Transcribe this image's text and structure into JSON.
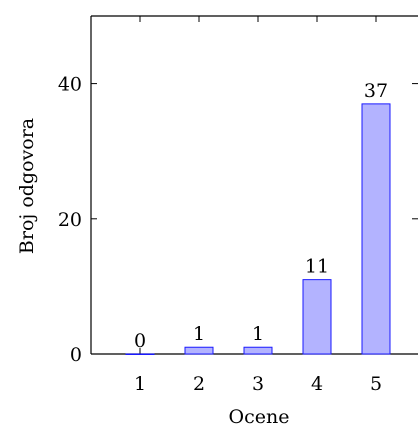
{
  "chart_data": {
    "type": "bar",
    "title": "",
    "xlabel": "Ocene",
    "ylabel": "Broj odgovora",
    "categories": [
      "1",
      "2",
      "3",
      "4",
      "5"
    ],
    "values": [
      0,
      1,
      1,
      11,
      37
    ],
    "data_labels": [
      "0",
      "1",
      "1",
      "11",
      "37"
    ],
    "ylim": [
      0,
      50
    ],
    "yticks": [
      0,
      20,
      40
    ],
    "ytick_labels": [
      "0",
      "20",
      "40"
    ],
    "grid": false,
    "colors": {
      "bar_fill": "#b3b3ff",
      "bar_stroke": "#1a1aff"
    }
  }
}
